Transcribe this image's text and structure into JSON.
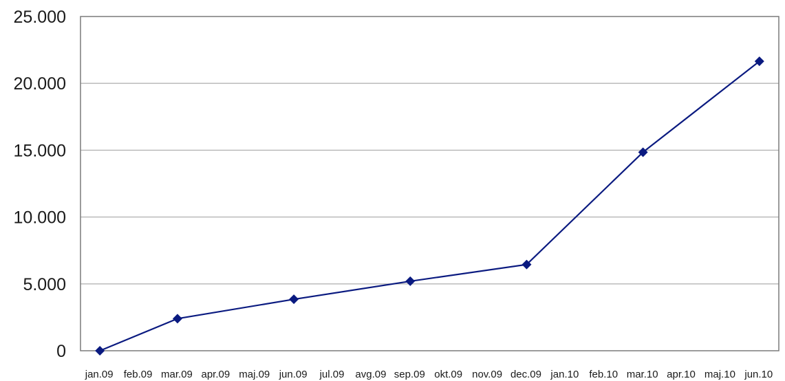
{
  "chart_data": {
    "type": "line",
    "title": "",
    "xlabel": "",
    "ylabel": "",
    "categories": [
      "jan.09",
      "feb.09",
      "mar.09",
      "apr.09",
      "maj.09",
      "jun.09",
      "jul.09",
      "avg.09",
      "sep.09",
      "okt.09",
      "nov.09",
      "dec.09",
      "jan.10",
      "feb.10",
      "mar.10",
      "apr.10",
      "maj.10",
      "jun.10"
    ],
    "ylim": [
      0,
      25000
    ],
    "y_ticks": [
      0,
      5000,
      10000,
      15000,
      20000,
      25000
    ],
    "y_tick_labels": [
      "0",
      "5.000",
      "10.000",
      "15.000",
      "20.000",
      "25.000"
    ],
    "grid": "horizontal",
    "legend": "none",
    "series": [
      {
        "color": "#0a1a80",
        "marker": "diamond",
        "points": [
          {
            "x": "jan.09",
            "y": 0
          },
          {
            "x": "mar.09",
            "y": 2400
          },
          {
            "x": "jun.09",
            "y": 3850
          },
          {
            "x": "sep.09",
            "y": 5200
          },
          {
            "x": "dec.09",
            "y": 6450
          },
          {
            "x": "mar.10",
            "y": 14850
          },
          {
            "x": "jun.10",
            "y": 21650
          }
        ]
      }
    ],
    "colors": {
      "line": "#0a1a80",
      "grid": "#b4b4b4",
      "frame": "#7a7a7a",
      "text": "#1a1a1a"
    }
  }
}
